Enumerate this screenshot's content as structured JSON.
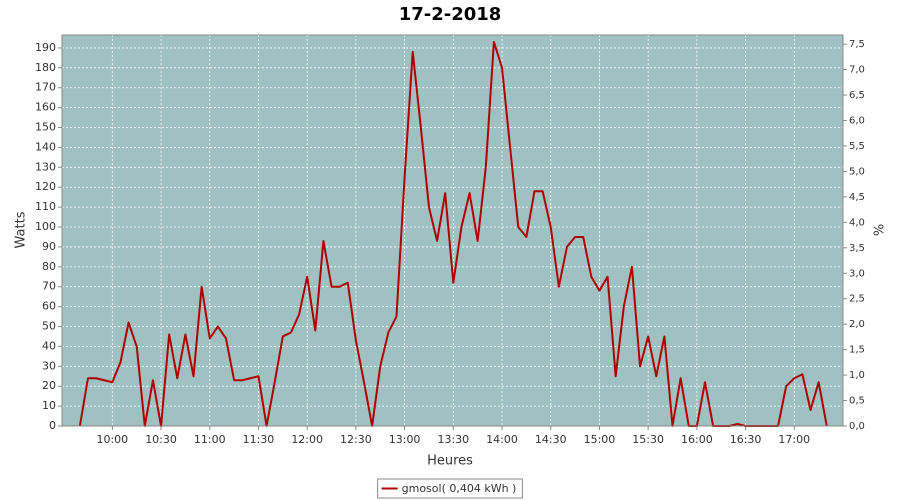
{
  "chart_data": {
    "type": "line",
    "title": "17-2-2018",
    "x_label": "Heures",
    "y_label": "Watts",
    "y2_label": "%",
    "x": [
      580,
      585,
      590,
      595,
      600,
      605,
      610,
      615,
      620,
      625,
      630,
      635,
      640,
      645,
      650,
      655,
      660,
      665,
      670,
      675,
      680,
      685,
      690,
      695,
      700,
      705,
      710,
      715,
      720,
      725,
      730,
      735,
      740,
      745,
      750,
      755,
      760,
      765,
      770,
      775,
      780,
      785,
      790,
      795,
      800,
      805,
      810,
      815,
      820,
      825,
      830,
      835,
      840,
      845,
      850,
      855,
      860,
      865,
      870,
      875,
      880,
      885,
      890,
      895,
      900,
      905,
      910,
      915,
      920,
      925,
      930,
      935,
      940,
      945,
      950,
      955,
      960,
      965,
      970,
      975,
      980,
      985,
      990,
      995,
      1000,
      1005,
      1010,
      1015,
      1020,
      1025,
      1030,
      1035,
      1040
    ],
    "series": [
      {
        "name": "gmosol( 0,404 kWh )",
        "color": "#b00000",
        "values": [
          0,
          24,
          24,
          23,
          22,
          32,
          52,
          40,
          0,
          23,
          0,
          46,
          24,
          46,
          25,
          70,
          44,
          50,
          44,
          23,
          23,
          24,
          25,
          0,
          22,
          45,
          47,
          56,
          75,
          48,
          93,
          70,
          70,
          72,
          43,
          22,
          0,
          30,
          47,
          55,
          125,
          188,
          150,
          110,
          93,
          117,
          72,
          100,
          117,
          93,
          130,
          193,
          180,
          140,
          100,
          95,
          118,
          118,
          100,
          70,
          90,
          95,
          95,
          75,
          68,
          75,
          25,
          60,
          80,
          30,
          45,
          25,
          45,
          0,
          24,
          0,
          0,
          22,
          0,
          0,
          0,
          1,
          0,
          0,
          0,
          0,
          0,
          20,
          24,
          26,
          8,
          22,
          0
        ]
      }
    ],
    "xlim": [
      569,
      1050
    ],
    "xticks": [
      {
        "value": 600,
        "label": "10:00"
      },
      {
        "value": 630,
        "label": "10:30"
      },
      {
        "value": 660,
        "label": "11:00"
      },
      {
        "value": 690,
        "label": "11:30"
      },
      {
        "value": 720,
        "label": "12:00"
      },
      {
        "value": 750,
        "label": "12:30"
      },
      {
        "value": 780,
        "label": "13:00"
      },
      {
        "value": 810,
        "label": "13:30"
      },
      {
        "value": 840,
        "label": "14:00"
      },
      {
        "value": 870,
        "label": "14:30"
      },
      {
        "value": 900,
        "label": "15:00"
      },
      {
        "value": 930,
        "label": "15:30"
      },
      {
        "value": 960,
        "label": "16:00"
      },
      {
        "value": 990,
        "label": "16:30"
      },
      {
        "value": 1020,
        "label": "17:00"
      }
    ],
    "ylim": [
      0,
      196.5
    ],
    "yticks": [
      0,
      10,
      20,
      30,
      40,
      50,
      60,
      70,
      80,
      90,
      100,
      110,
      120,
      130,
      140,
      150,
      160,
      170,
      180,
      190
    ],
    "y2lim": [
      0,
      7.68
    ],
    "y2ticks": [
      {
        "value": 0,
        "label": "0,0"
      },
      {
        "value": 0.5,
        "label": "0,5"
      },
      {
        "value": 1,
        "label": "1,0"
      },
      {
        "value": 1.5,
        "label": "1,5"
      },
      {
        "value": 2,
        "label": "2,0"
      },
      {
        "value": 2.5,
        "label": "2,5"
      },
      {
        "value": 3,
        "label": "3,0"
      },
      {
        "value": 3.5,
        "label": "3,5"
      },
      {
        "value": 4,
        "label": "4,0"
      },
      {
        "value": 4.5,
        "label": "4,5"
      },
      {
        "value": 5,
        "label": "5,0"
      },
      {
        "value": 5.5,
        "label": "5,5"
      },
      {
        "value": 6,
        "label": "6,0"
      },
      {
        "value": 6.5,
        "label": "6,5"
      },
      {
        "value": 7,
        "label": "7,0"
      },
      {
        "value": 7.5,
        "label": "7,5"
      }
    ],
    "grid": true,
    "plot_background": "#9fc1c1",
    "legend": "bottom"
  }
}
